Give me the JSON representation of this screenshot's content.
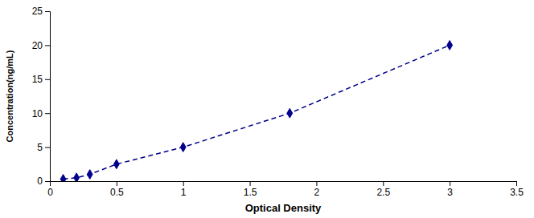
{
  "chart_data": {
    "type": "line",
    "x": [
      0.1,
      0.2,
      0.3,
      0.5,
      1.0,
      1.8,
      3.0
    ],
    "values": [
      0.3,
      0.5,
      1.0,
      2.5,
      5.0,
      10.0,
      20.0
    ],
    "color": "#00008B",
    "marker": "diamond",
    "line_style": "dashed",
    "xlabel": "Optical Density",
    "ylabel": "Concentration(ng/mL)",
    "xlim": [
      0,
      3.5
    ],
    "ylim": [
      0,
      25
    ],
    "xticks": [
      0,
      0.5,
      1.0,
      1.5,
      2.0,
      2.5,
      3.0,
      3.5
    ],
    "yticks": [
      0,
      5,
      10,
      15,
      20,
      25
    ],
    "grid": false
  }
}
